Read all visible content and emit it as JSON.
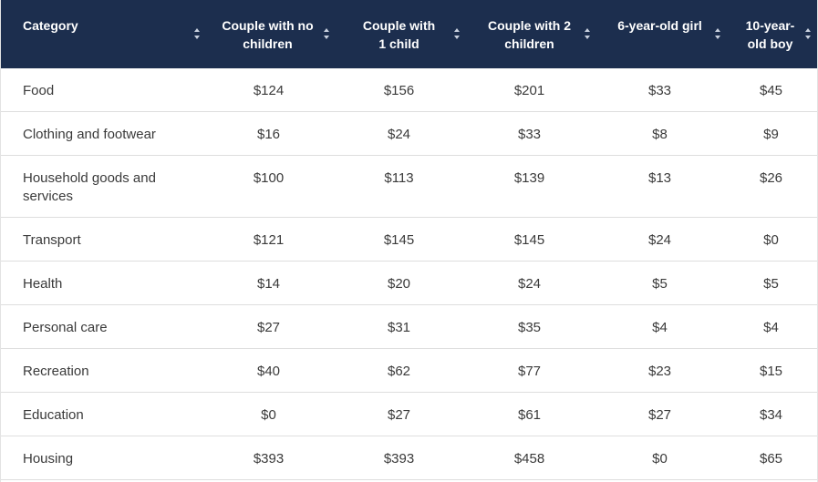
{
  "table": {
    "headers": [
      "Category",
      "Couple with no children",
      "Couple with 1 child",
      "Couple with 2 children",
      "6-year-old girl",
      "10-year-old boy"
    ],
    "rows": [
      [
        "Food",
        "$124",
        "$156",
        "$201",
        "$33",
        "$45"
      ],
      [
        "Clothing and footwear",
        "$16",
        "$24",
        "$33",
        "$8",
        "$9"
      ],
      [
        "Household goods and services",
        "$100",
        "$113",
        "$139",
        "$13",
        "$26"
      ],
      [
        "Transport",
        "$121",
        "$145",
        "$145",
        "$24",
        "$0"
      ],
      [
        "Health",
        "$14",
        "$20",
        "$24",
        "$5",
        "$5"
      ],
      [
        "Personal care",
        "$27",
        "$31",
        "$35",
        "$4",
        "$4"
      ],
      [
        "Recreation",
        "$40",
        "$62",
        "$77",
        "$23",
        "$15"
      ],
      [
        "Education",
        "$0",
        "$27",
        "$61",
        "$27",
        "$34"
      ],
      [
        "Housing",
        "$393",
        "$393",
        "$458",
        "$0",
        "$65"
      ]
    ]
  },
  "colors": {
    "header_background": "#1c2e4e",
    "header_text": "#ffffff",
    "body_text": "#3a3a3a",
    "row_divider": "#dedede"
  }
}
